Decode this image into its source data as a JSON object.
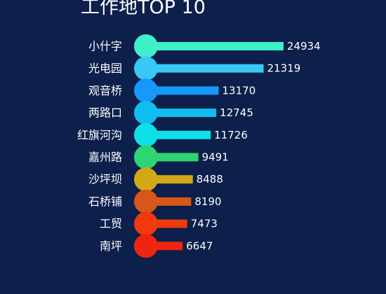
{
  "chart_data": {
    "type": "bar",
    "orientation": "horizontal",
    "title": "工作地TOP 10",
    "categories": [
      "小什字",
      "光电园",
      "观音桥",
      "两路口",
      "红旗河沟",
      "嘉州路",
      "沙坪坝",
      "石桥铺",
      "工贸",
      "南坪"
    ],
    "values": [
      24934,
      21319,
      13170,
      12745,
      11726,
      9491,
      8488,
      8190,
      7473,
      6647
    ],
    "colors": [
      "#3ef0c8",
      "#38c8f6",
      "#1898f8",
      "#10bdf0",
      "#0de1e8",
      "#2ed573",
      "#d3a816",
      "#d8561a",
      "#f03a0e",
      "#f02410"
    ],
    "xlim": [
      0,
      24934
    ],
    "grid": false,
    "legend": "none"
  },
  "style": {
    "background": "#0d1f4b",
    "text_color": "#ffffff"
  }
}
